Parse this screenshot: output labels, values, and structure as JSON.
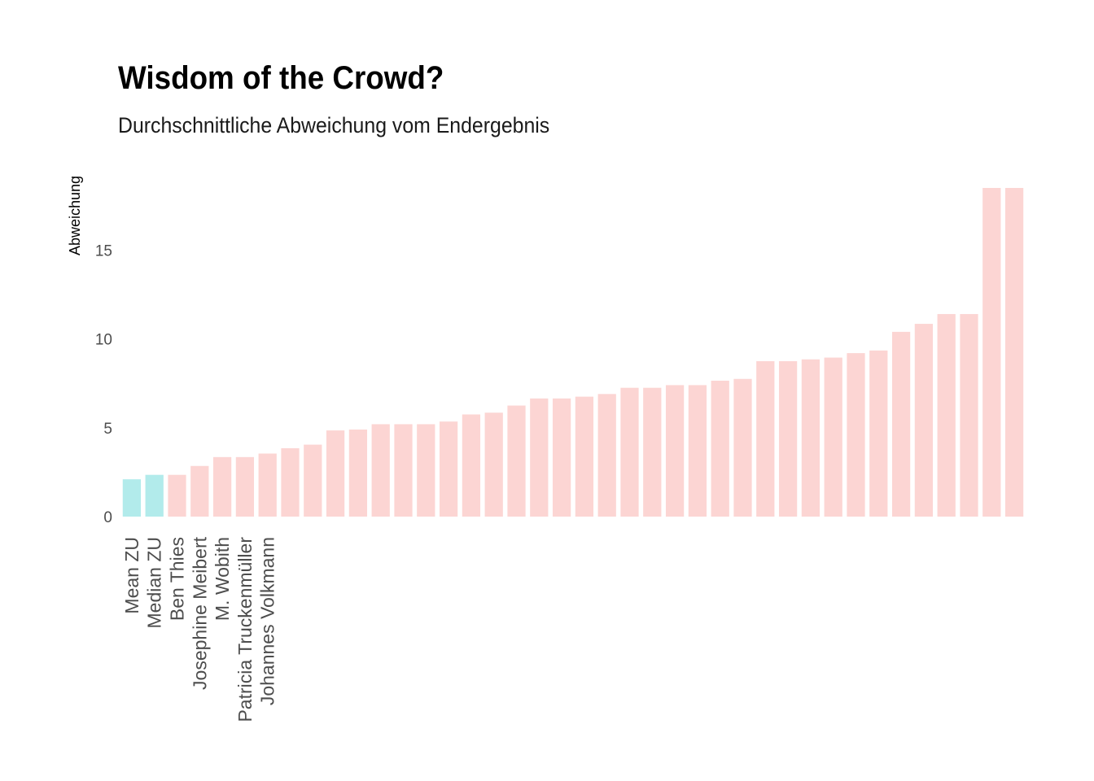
{
  "chart_data": {
    "type": "bar",
    "title": "Wisdom of the Crowd?",
    "subtitle": "Durchschnittliche Abweichung vom Endergebnis",
    "xlabel": "",
    "ylabel": "Abweichung",
    "ylim": [
      0,
      18.5
    ],
    "yticks": [
      0,
      5,
      10,
      15
    ],
    "grid": false,
    "legend": "none",
    "colors": {
      "aggregate": "#b2ebeb",
      "individual": "#fcd5d3"
    },
    "categories": [
      "Mean ZU",
      "Median ZU",
      "Ben Thies",
      "Josephine Meibert",
      "M. Wobith",
      "Patricia Truckenmüller",
      "Johannes Volkmann",
      "",
      "",
      "",
      "",
      "",
      "",
      "",
      "",
      "",
      "",
      "",
      "",
      "",
      "",
      "",
      "",
      "",
      "",
      "",
      "",
      "",
      "",
      "",
      "",
      "",
      "",
      "",
      "",
      "",
      "",
      "",
      "",
      ""
    ],
    "values": [
      2.1,
      2.35,
      2.35,
      2.85,
      3.35,
      3.35,
      3.55,
      3.85,
      4.05,
      4.85,
      4.9,
      5.2,
      5.2,
      5.2,
      5.35,
      5.75,
      5.85,
      6.25,
      6.65,
      6.65,
      6.75,
      6.9,
      7.25,
      7.25,
      7.4,
      7.4,
      7.65,
      7.75,
      8.75,
      8.75,
      8.85,
      8.95,
      9.2,
      9.35,
      10.4,
      10.85,
      11.4,
      11.4,
      18.5,
      18.5
    ],
    "highlight_count": 2
  }
}
